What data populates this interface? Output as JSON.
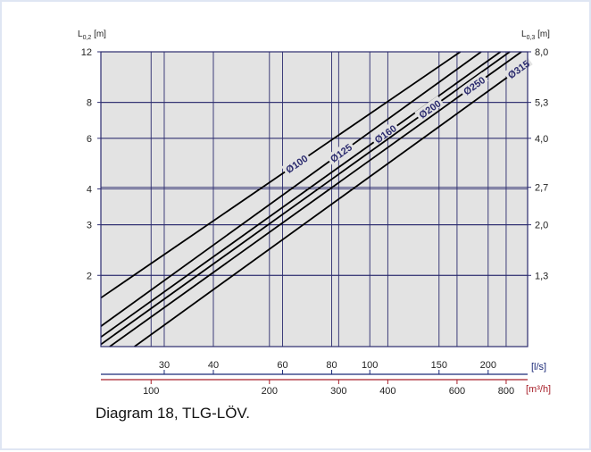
{
  "caption": "Diagram 18, TLG-LÖV.",
  "colors": {
    "plot_background": "#e3e3e3",
    "grid": "#2b2b6e",
    "lines": "#000000",
    "line_labels": "#2b2b6e",
    "ls_axis": "#1c2a78",
    "m3h_axis": "#a8202a",
    "text": "#222222"
  },
  "chart_data": {
    "type": "line",
    "title": "",
    "x_scale": "log",
    "y_scale": "log",
    "xlim": [
      20.7,
      252
    ],
    "ylim": [
      1.13,
      12
    ],
    "x_axis": {
      "unit_label": "[l/s]",
      "ticks": [
        30,
        40,
        60,
        80,
        100,
        150,
        200
      ],
      "tick_labels": [
        "30",
        "40",
        "60",
        "80",
        "100",
        "150",
        "200"
      ]
    },
    "x_axis_secondary": {
      "unit_label": "[m³/h]",
      "ticks": [
        100,
        200,
        300,
        400,
        600,
        800
      ],
      "tick_labels": [
        "100",
        "200",
        "300",
        "400",
        "600",
        "800"
      ]
    },
    "y_axis_left": {
      "label": "L0,2 [m]",
      "label_main": "L",
      "label_sub": "0,2",
      "label_unit": " [m]",
      "ticks": [
        2,
        3,
        4,
        6,
        8,
        12
      ],
      "tick_labels": [
        "2",
        "3",
        "4",
        "6",
        "8",
        "12"
      ]
    },
    "y_axis_right": {
      "label": "L0,3 [m]",
      "label_main": "L",
      "label_sub": "0,3",
      "label_unit": " [m]",
      "ticks": [
        1.333,
        2,
        2.7,
        4,
        5.333,
        8
      ],
      "tick_labels": [
        "1,3",
        "2,0",
        "2,7",
        "4,0",
        "5,3",
        "8,0"
      ]
    },
    "series": [
      {
        "name": "Ø100",
        "points": [
          [
            20.7,
            1.67
          ],
          [
            170,
            12.0
          ]
        ]
      },
      {
        "name": "Ø125",
        "points": [
          [
            20.7,
            1.33
          ],
          [
            192,
            12.0
          ]
        ]
      },
      {
        "name": "Ø160",
        "points": [
          [
            20.7,
            1.22
          ],
          [
            215,
            12.0
          ]
        ]
      },
      {
        "name": "Ø200",
        "points": [
          [
            20.7,
            1.15
          ],
          [
            227,
            12.0
          ]
        ]
      },
      {
        "name": "Ø250",
        "points": [
          [
            21.8,
            1.13
          ],
          [
            243,
            12.0
          ]
        ]
      },
      {
        "name": "Ø315",
        "points": [
          [
            25.2,
            1.13
          ],
          [
            252,
            11.0
          ]
        ]
      }
    ]
  }
}
